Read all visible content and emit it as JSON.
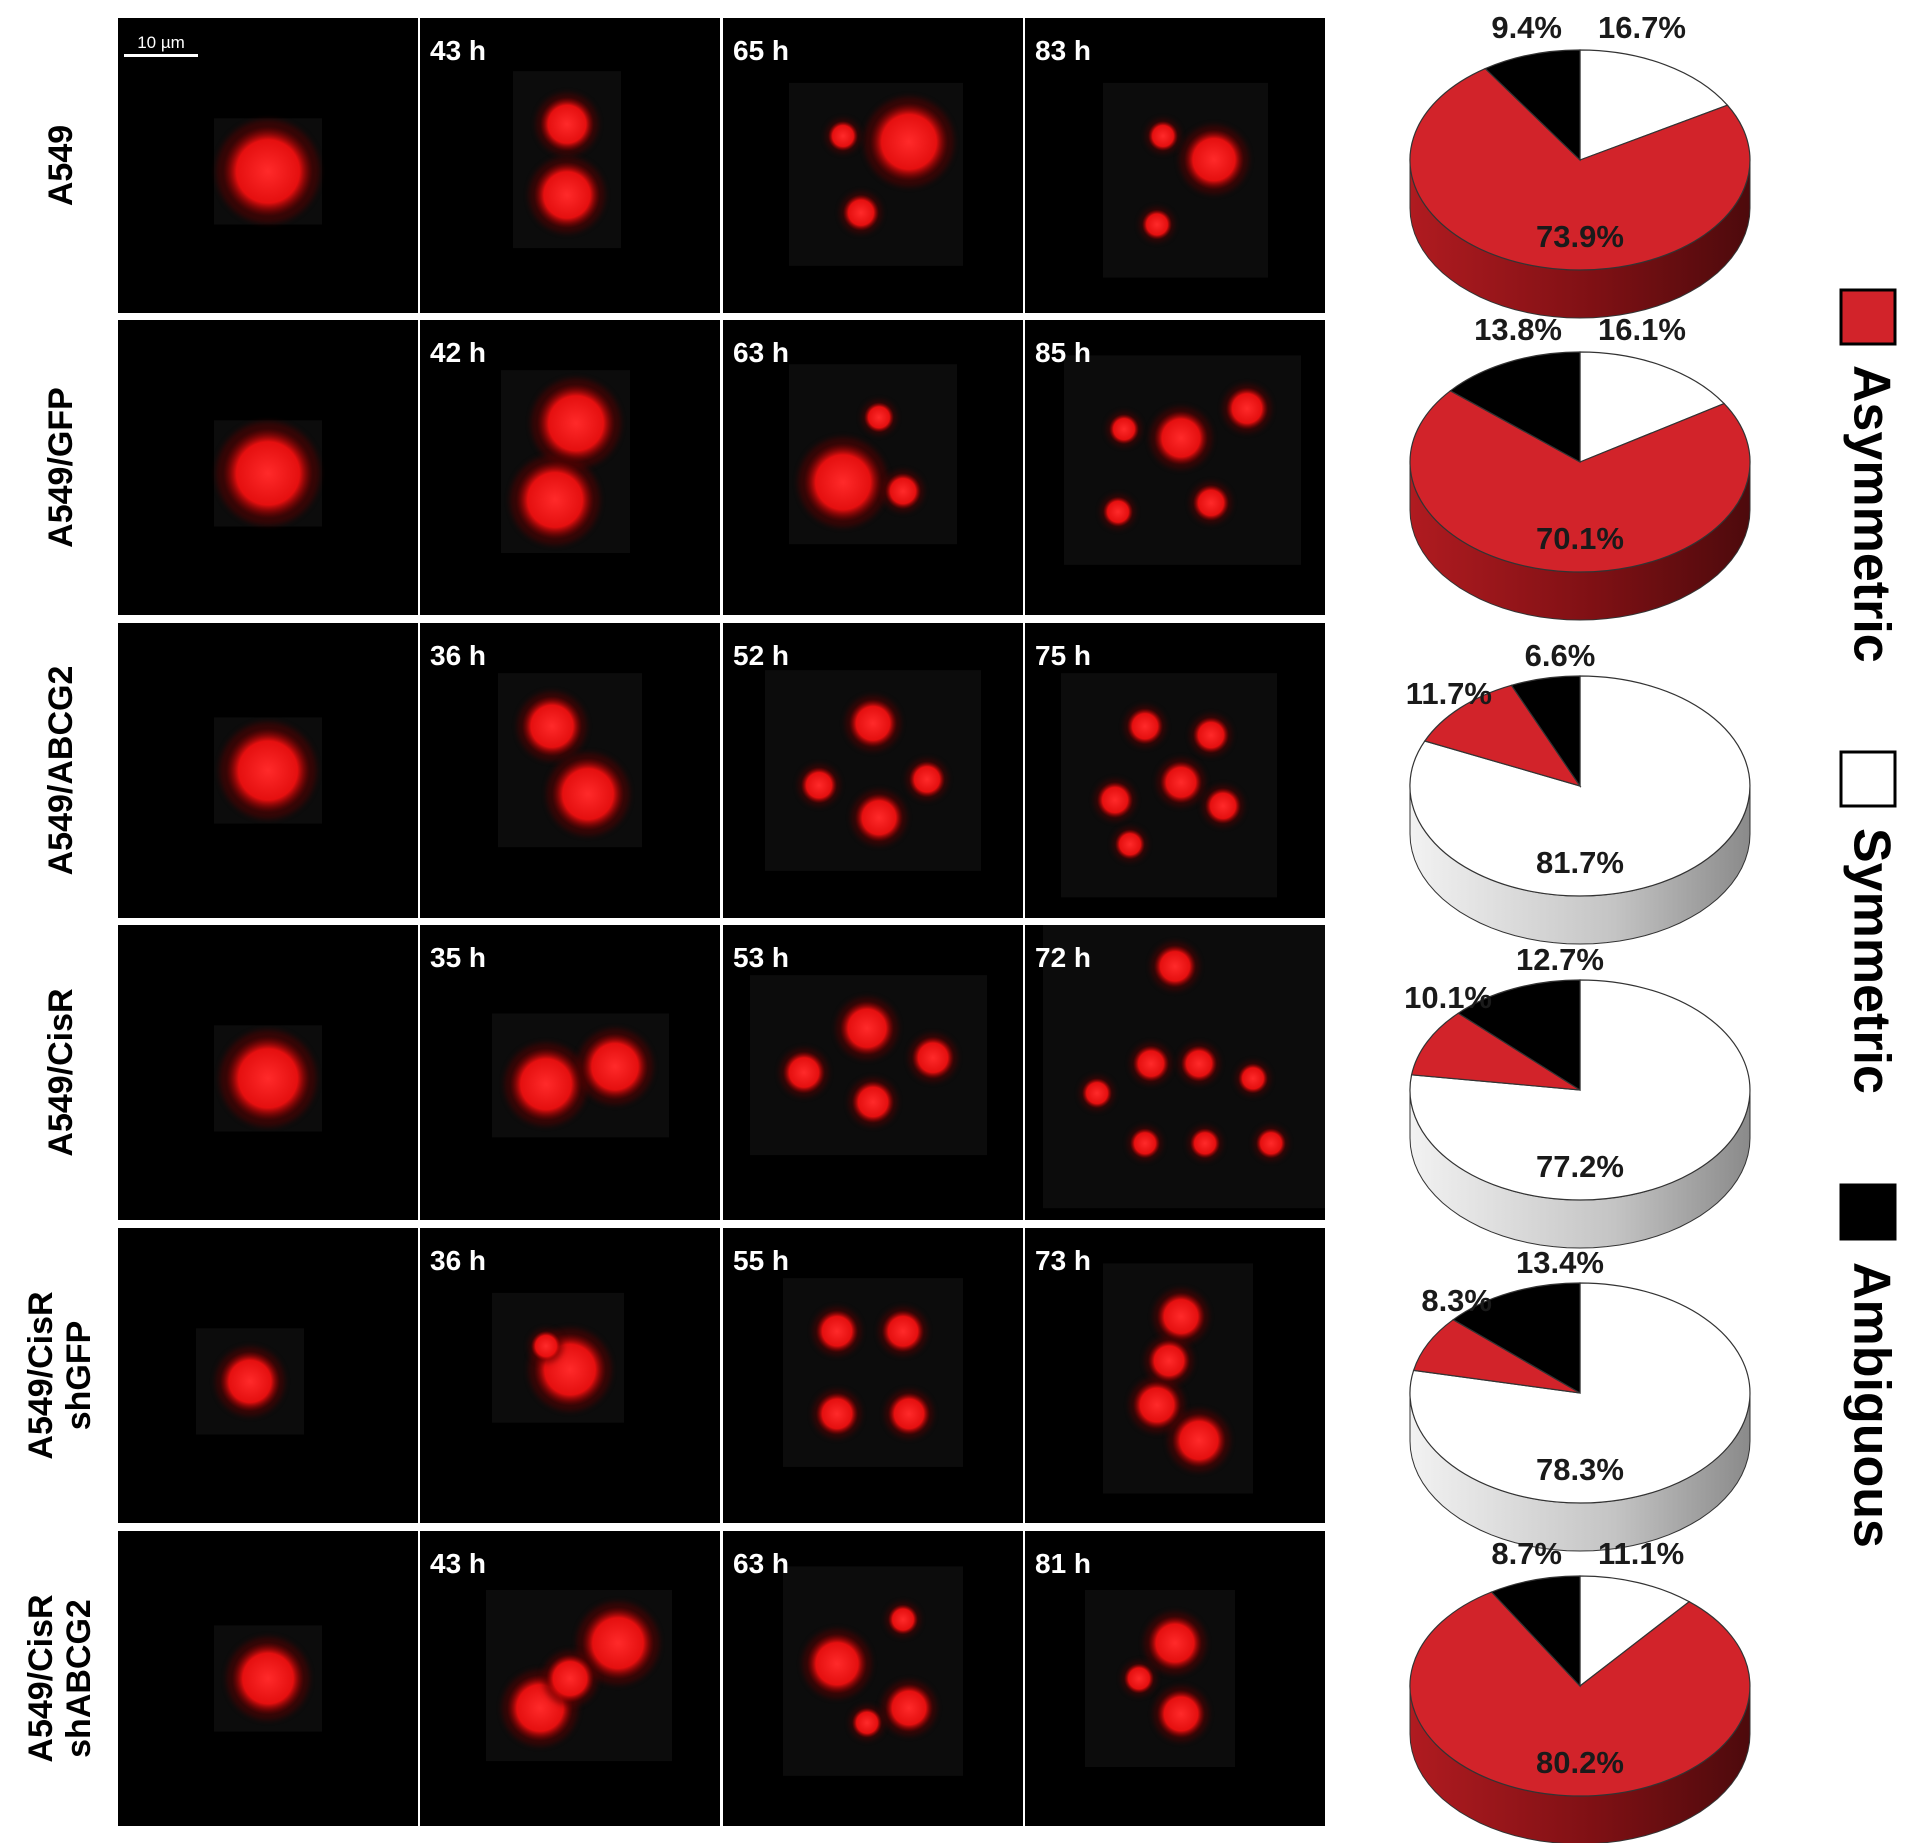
{
  "scale_bar_label": "10 µm",
  "rows": [
    {
      "label_lines": [
        "A549"
      ],
      "times": [
        "",
        "43 h",
        "65 h",
        "83 h"
      ]
    },
    {
      "label_lines": [
        "A549/GFP"
      ],
      "times": [
        "",
        "42 h",
        "63 h",
        "85 h"
      ]
    },
    {
      "label_lines": [
        "A549/ABCG2"
      ],
      "times": [
        "",
        "36 h",
        "52 h",
        "75 h"
      ]
    },
    {
      "label_lines": [
        "A549/CisR"
      ],
      "times": [
        "",
        "35 h",
        "53 h",
        "72 h"
      ]
    },
    {
      "label_lines": [
        "A549/CisR",
        "shGFP"
      ],
      "times": [
        "",
        "36 h",
        "55 h",
        "73 h"
      ]
    },
    {
      "label_lines": [
        "A549/CisR",
        "shABCG2"
      ],
      "times": [
        "",
        "43 h",
        "63 h",
        "81 h"
      ]
    }
  ],
  "colors": {
    "asymmetric": "#d2232a",
    "symmetric": "#ffffff",
    "ambiguous": "#000000",
    "cell": "#ff1a1a"
  },
  "chart_data": [
    {
      "type": "pie",
      "row": "A549",
      "labels": [
        "Asymmetric",
        "Symmetric",
        "Ambiguous"
      ],
      "values": [
        73.9,
        16.7,
        9.4
      ],
      "value_labels": [
        "73.9%",
        "16.7%",
        "9.4%"
      ]
    },
    {
      "type": "pie",
      "row": "A549/GFP",
      "labels": [
        "Asymmetric",
        "Symmetric",
        "Ambiguous"
      ],
      "values": [
        70.1,
        16.1,
        13.8
      ],
      "value_labels": [
        "70.1%",
        "16.1%",
        "13.8%"
      ]
    },
    {
      "type": "pie",
      "row": "A549/ABCG2",
      "labels": [
        "Asymmetric",
        "Symmetric",
        "Ambiguous"
      ],
      "values": [
        11.7,
        81.7,
        6.6
      ],
      "value_labels": [
        "11.7%",
        "81.7%",
        "6.6%"
      ]
    },
    {
      "type": "pie",
      "row": "A549/CisR",
      "labels": [
        "Asymmetric",
        "Symmetric",
        "Ambiguous"
      ],
      "values": [
        10.1,
        77.2,
        12.7
      ],
      "value_labels": [
        "10.1%",
        "77.2%",
        "12.7%"
      ]
    },
    {
      "type": "pie",
      "row": "A549/CisR shGFP",
      "labels": [
        "Asymmetric",
        "Symmetric",
        "Ambiguous"
      ],
      "values": [
        8.3,
        78.3,
        13.4
      ],
      "value_labels": [
        "8.3%",
        "78.3%",
        "13.4%"
      ]
    },
    {
      "type": "pie",
      "row": "A549/CisR shABCG2",
      "labels": [
        "Asymmetric",
        "Symmetric",
        "Ambiguous"
      ],
      "values": [
        80.2,
        11.1,
        8.7
      ],
      "value_labels": [
        "80.2%",
        "11.1%",
        "8.7%"
      ]
    }
  ],
  "legend": [
    {
      "key": "asymmetric",
      "label": "Asymmetric",
      "color": "#d2232a"
    },
    {
      "key": "symmetric",
      "label": "Symmetric",
      "color": "#ffffff"
    },
    {
      "key": "ambiguous",
      "label": "Ambiguous",
      "color": "#000000"
    }
  ]
}
